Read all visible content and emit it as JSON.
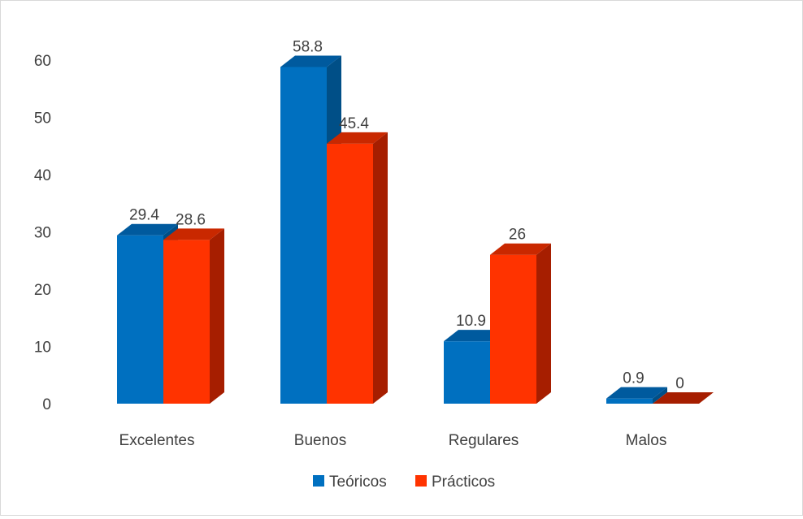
{
  "chart_data": {
    "type": "bar",
    "categories": [
      "Excelentes",
      "Buenos",
      "Regulares",
      "Malos"
    ],
    "series": [
      {
        "name": "Teóricos",
        "values": [
          29.4,
          58.8,
          10.9,
          0.9
        ],
        "labels": [
          "29.4",
          "58.8",
          "10.9",
          "0.9"
        ]
      },
      {
        "name": "Prácticos",
        "values": [
          28.6,
          45.4,
          26,
          0
        ],
        "labels": [
          "28.6",
          "45.4",
          "26",
          "0"
        ]
      }
    ],
    "yticks": [
      "0",
      "10",
      "20",
      "30",
      "40",
      "50",
      "60"
    ],
    "ylim": [
      0,
      60
    ],
    "grid": false,
    "legend_position": "bottom",
    "three_d": true,
    "colors": {
      "series": [
        "#0070c0",
        "#ff3300"
      ],
      "series_side": [
        "#004f87",
        "#a61e00"
      ],
      "series_top": [
        "#005a9e",
        "#c92800"
      ]
    }
  }
}
